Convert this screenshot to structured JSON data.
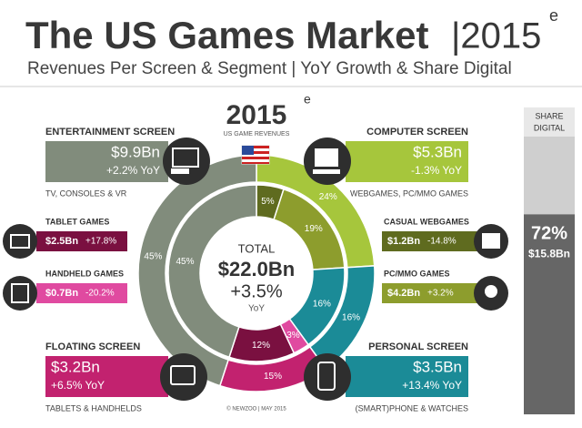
{
  "header": {
    "title": "The US Games Market",
    "year": "|2015",
    "year_mark": "e",
    "subtitle": "Revenues Per Screen & Segment | YoY Growth & Share Digital"
  },
  "center": {
    "year": "2015",
    "year_mark": "e",
    "caption": "US GAME REVENUES",
    "total_label": "TOTAL",
    "total": "$22.0Bn",
    "growth": "+3.5%",
    "growth_label": "YoY"
  },
  "donut": {
    "outer": {
      "values": [
        24,
        16,
        15,
        45
      ],
      "value_labels": [
        "24%",
        "16%",
        "15%",
        "45%"
      ],
      "colors": [
        "#a6c63c",
        "#1b8b97",
        "#c2226f",
        "#818c7c"
      ]
    },
    "inner": {
      "values": [
        5,
        19,
        16,
        3,
        12,
        45
      ],
      "value_labels": [
        "5%",
        "19%",
        "16%",
        "3%",
        "12%",
        "45%"
      ],
      "colors": [
        "#5f6b1f",
        "#8d9d2d",
        "#1b8b97",
        "#e04aa0",
        "#7a1040",
        "#818c7c"
      ]
    }
  },
  "screens": [
    {
      "title": "ENTERTAINMENT SCREEN",
      "revenue": "$9.9Bn",
      "growth": "+2.2% YoY",
      "caption": "TV, CONSOLES & VR",
      "color": "#818c7c"
    },
    {
      "title": "COMPUTER SCREEN",
      "revenue": "$5.3Bn",
      "growth": "-1.3% YoY",
      "caption": "WEBGAMES, PC/MMO GAMES",
      "color": "#a6c63c"
    },
    {
      "title": "FLOATING SCREEN",
      "revenue": "$3.2Bn",
      "growth": "+6.5% YoY",
      "caption": "TABLETS & HANDHELDS",
      "color": "#c2226f"
    },
    {
      "title": "PERSONAL SCREEN",
      "revenue": "$3.5Bn",
      "growth": "+13.4% YoY",
      "caption": "(SMART)PHONE & WATCHES",
      "color": "#1b8b97"
    }
  ],
  "segments": [
    {
      "title": "TABLET GAMES",
      "revenue": "$2.5Bn",
      "growth": "+17.8%",
      "color": "#7a1040"
    },
    {
      "title": "HANDHELD GAMES",
      "revenue": "$0.7Bn",
      "growth": "-20.2%",
      "color": "#e04aa0"
    },
    {
      "title": "CASUAL WEBGAMES",
      "revenue": "$1.2Bn",
      "growth": "-14.8%",
      "color": "#5f6b1f"
    },
    {
      "title": "PC/MMO GAMES",
      "revenue": "$4.2Bn",
      "growth": "+3.2%",
      "color": "#8d9d2d"
    }
  ],
  "share_digital": {
    "title_lines": [
      "SHARE",
      "DIGITAL"
    ],
    "value": 72,
    "value_label": "72%",
    "revenue": "$15.8Bn"
  },
  "footer": "© NEWZOO | MAY 2015"
}
